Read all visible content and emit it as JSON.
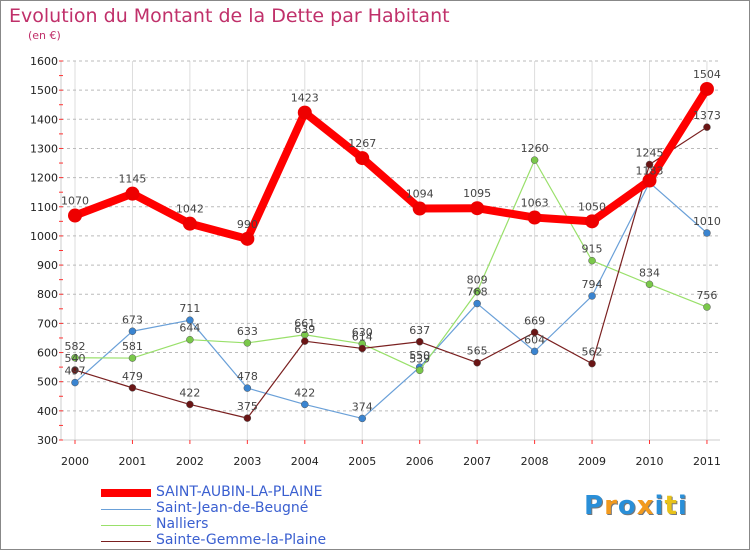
{
  "title": "Evolution du Montant de la Dette par Habitant",
  "subtitle": "(en €)",
  "logo": {
    "text": "Proxiti",
    "letter_colors": [
      "#2a8fd8",
      "#f29a1e",
      "#2a8fd8",
      "#f29a1e",
      "#2a8fd8",
      "#e8c21a",
      "#2a8fd8"
    ]
  },
  "colors": {
    "grid_y": "#bbbbbb",
    "grid_x": "#dddddd",
    "axis": "#cccccc",
    "tick_red": "#ff3333"
  },
  "chart_data": {
    "type": "line",
    "title": "Evolution du Montant de la Dette par Habitant",
    "subtitle": "(en €)",
    "xlabel": "",
    "ylabel": "",
    "x": [
      "2000",
      "2001",
      "2002",
      "2003",
      "2004",
      "2005",
      "2006",
      "2007",
      "2008",
      "2009",
      "2010",
      "2011"
    ],
    "ylim": [
      300,
      1600
    ],
    "yticks": [
      300,
      400,
      500,
      600,
      700,
      800,
      900,
      1000,
      1100,
      1200,
      1300,
      1400,
      1500,
      1600
    ],
    "grid": true,
    "legend_position": "bottom-left",
    "series": [
      {
        "name": "SAINT-AUBIN-LA-PLAINE",
        "color": "#ff0000",
        "marker_color": "#ee0000",
        "width": 8,
        "marker": 7,
        "values": [
          1070,
          1145,
          1042,
          990,
          1423,
          1267,
          1094,
          1095,
          1063,
          1050,
          1190,
          1504
        ],
        "labels": [
          "1070",
          "1145",
          "1042",
          "990",
          "1423",
          "1267",
          "1094",
          "1095",
          "1063",
          "1050",
          "",
          "1504"
        ]
      },
      {
        "name": "Saint-Jean-de-Beugné",
        "color": "#6aa0d8",
        "marker_color": "#3a84d0",
        "width": 1.2,
        "marker": 3.5,
        "values": [
          497,
          673,
          711,
          478,
          422,
          374,
          550,
          768,
          604,
          794,
          1183,
          1010
        ],
        "labels": [
          "497",
          "673",
          "711",
          "478",
          "422",
          "374",
          "550",
          "768",
          "604",
          "794",
          "1183",
          "1010"
        ]
      },
      {
        "name": "Nalliers",
        "color": "#99e06a",
        "marker_color": "#7ac84a",
        "width": 1.2,
        "marker": 3.5,
        "values": [
          582,
          581,
          644,
          633,
          661,
          630,
          539,
          809,
          1260,
          915,
          834,
          756
        ],
        "labels": [
          "582",
          "581",
          "644",
          "633",
          "661",
          "630",
          "539",
          "809",
          "1260",
          "915",
          "834",
          "756"
        ]
      },
      {
        "name": "Sainte-Gemme-la-Plaine",
        "color": "#7a2020",
        "marker_color": "#6a1515",
        "width": 1.2,
        "marker": 3.5,
        "values": [
          540,
          479,
          422,
          375,
          639,
          614,
          637,
          565,
          669,
          562,
          1245,
          1373
        ],
        "labels": [
          "540",
          "479",
          "422",
          "375",
          "639",
          "614",
          "637",
          "565",
          "669",
          "562",
          "1245",
          "1373"
        ]
      }
    ]
  }
}
